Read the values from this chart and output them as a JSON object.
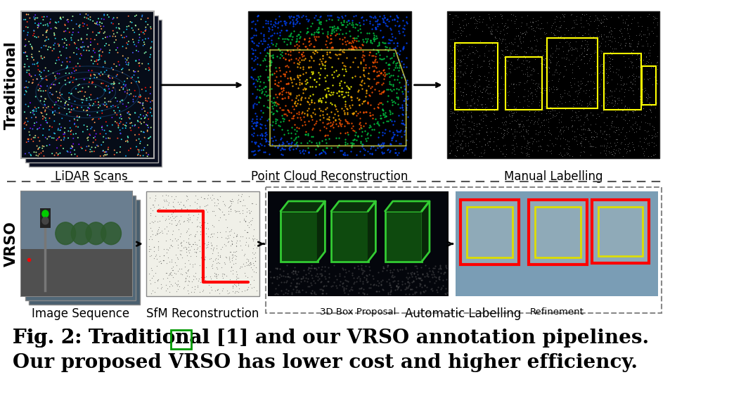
{
  "bg_color": "#ffffff",
  "fig_width": 10.54,
  "fig_height": 5.7,
  "top_row_label": "Traditional",
  "bottom_row_label": "VRSO",
  "top_labels": [
    "LiDAR Scans",
    "Point Cloud Reconstruction",
    "Manual Labelling"
  ],
  "bottom_labels": [
    "Image Sequence",
    "SfM Reconstruction",
    "Automatic Labelling"
  ],
  "sub_bottom_labels": [
    "3D Box Proposal",
    "Refinement"
  ],
  "arrow_color": "#000000",
  "dashed_border_color": "#888888",
  "label_fontsize": 12,
  "caption_fontsize": 20,
  "row_label_fontsize": 15,
  "caption_line1": "Fig. 2: Traditional [1] and our VRSO annotation pipelines.",
  "caption_line2": "Our proposed VRSO has lower cost and higher efficiency.",
  "green_ref_color": "#009900"
}
